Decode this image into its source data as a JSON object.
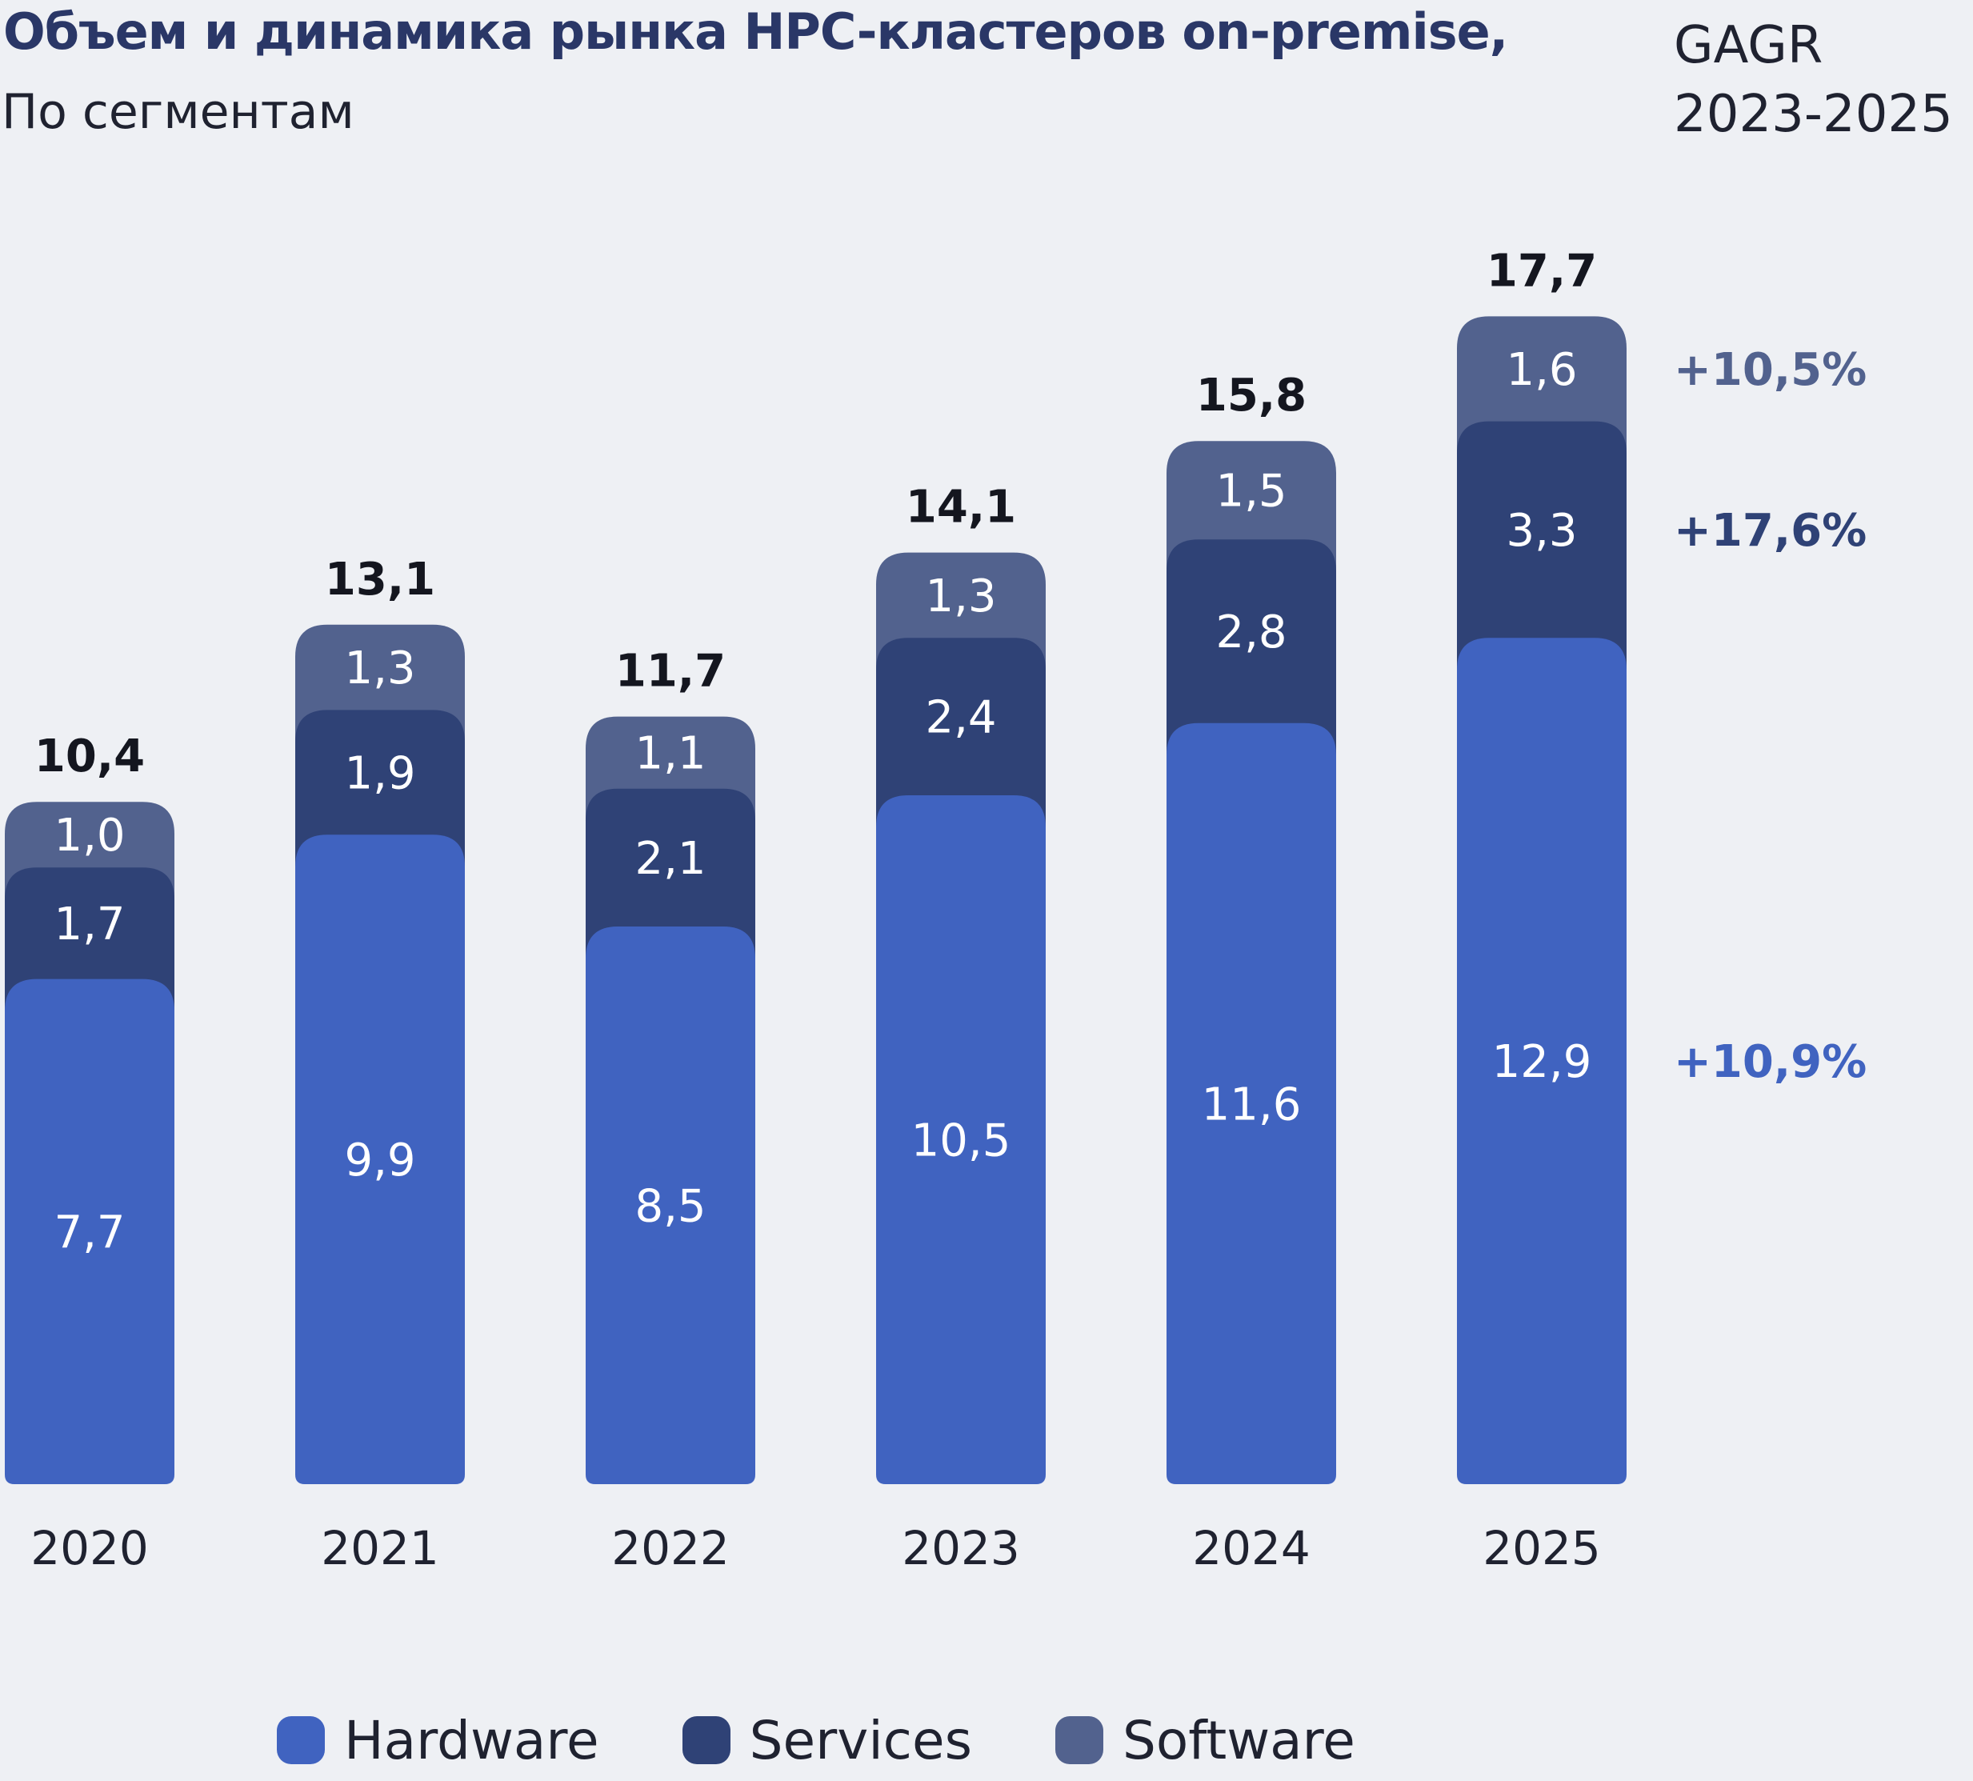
{
  "header": {
    "title": "Объем и динамика рынка HPC-кластеров on-premise,",
    "subtitle": "По сегментам",
    "cagr_line1": "GAGR",
    "cagr_line2": "2023-2025"
  },
  "colors": {
    "background": "#eef0f4",
    "hardware": "#4063c0",
    "services": "#2f4276",
    "software": "#52628e",
    "total_label": "#14161f",
    "segment_label": "#ffffff"
  },
  "chart_data": {
    "type": "bar",
    "stacked": true,
    "title": "Объем и динамика рынка HPC-кластеров on-premise,",
    "subtitle": "По сегментам",
    "categories": [
      "2020",
      "2021",
      "2022",
      "2023",
      "2024",
      "2025"
    ],
    "series": [
      {
        "name": "Hardware",
        "values": [
          7.7,
          9.9,
          8.5,
          10.5,
          11.6,
          12.9
        ],
        "labels": [
          "7,7",
          "9,9",
          "8,5",
          "10,5",
          "11,6",
          "12,9"
        ]
      },
      {
        "name": "Services",
        "values": [
          1.7,
          1.9,
          2.1,
          2.4,
          2.8,
          3.3
        ],
        "labels": [
          "1,7",
          "1,9",
          "2,1",
          "2,4",
          "2,8",
          "3,3"
        ]
      },
      {
        "name": "Software",
        "values": [
          1.0,
          1.3,
          1.1,
          1.3,
          1.5,
          1.6
        ],
        "labels": [
          "1,0",
          "1,3",
          "1,1",
          "1,3",
          "1,5",
          "1,6"
        ]
      }
    ],
    "totals": [
      10.4,
      13.1,
      11.7,
      14.1,
      15.8,
      17.7
    ],
    "total_labels": [
      "10,4",
      "13,1",
      "11,7",
      "14,1",
      "15,8",
      "17,7"
    ],
    "cagr": [
      {
        "series": "Software",
        "label": "+10,5%"
      },
      {
        "series": "Services",
        "label": "+17,6%"
      },
      {
        "series": "Hardware",
        "label": "+10,9%"
      }
    ],
    "grid": false,
    "legend_position": "bottom"
  },
  "legend": [
    {
      "label": "Hardware",
      "color": "#4063c0"
    },
    {
      "label": "Services",
      "color": "#2f4276"
    },
    {
      "label": "Software",
      "color": "#52628e"
    }
  ]
}
